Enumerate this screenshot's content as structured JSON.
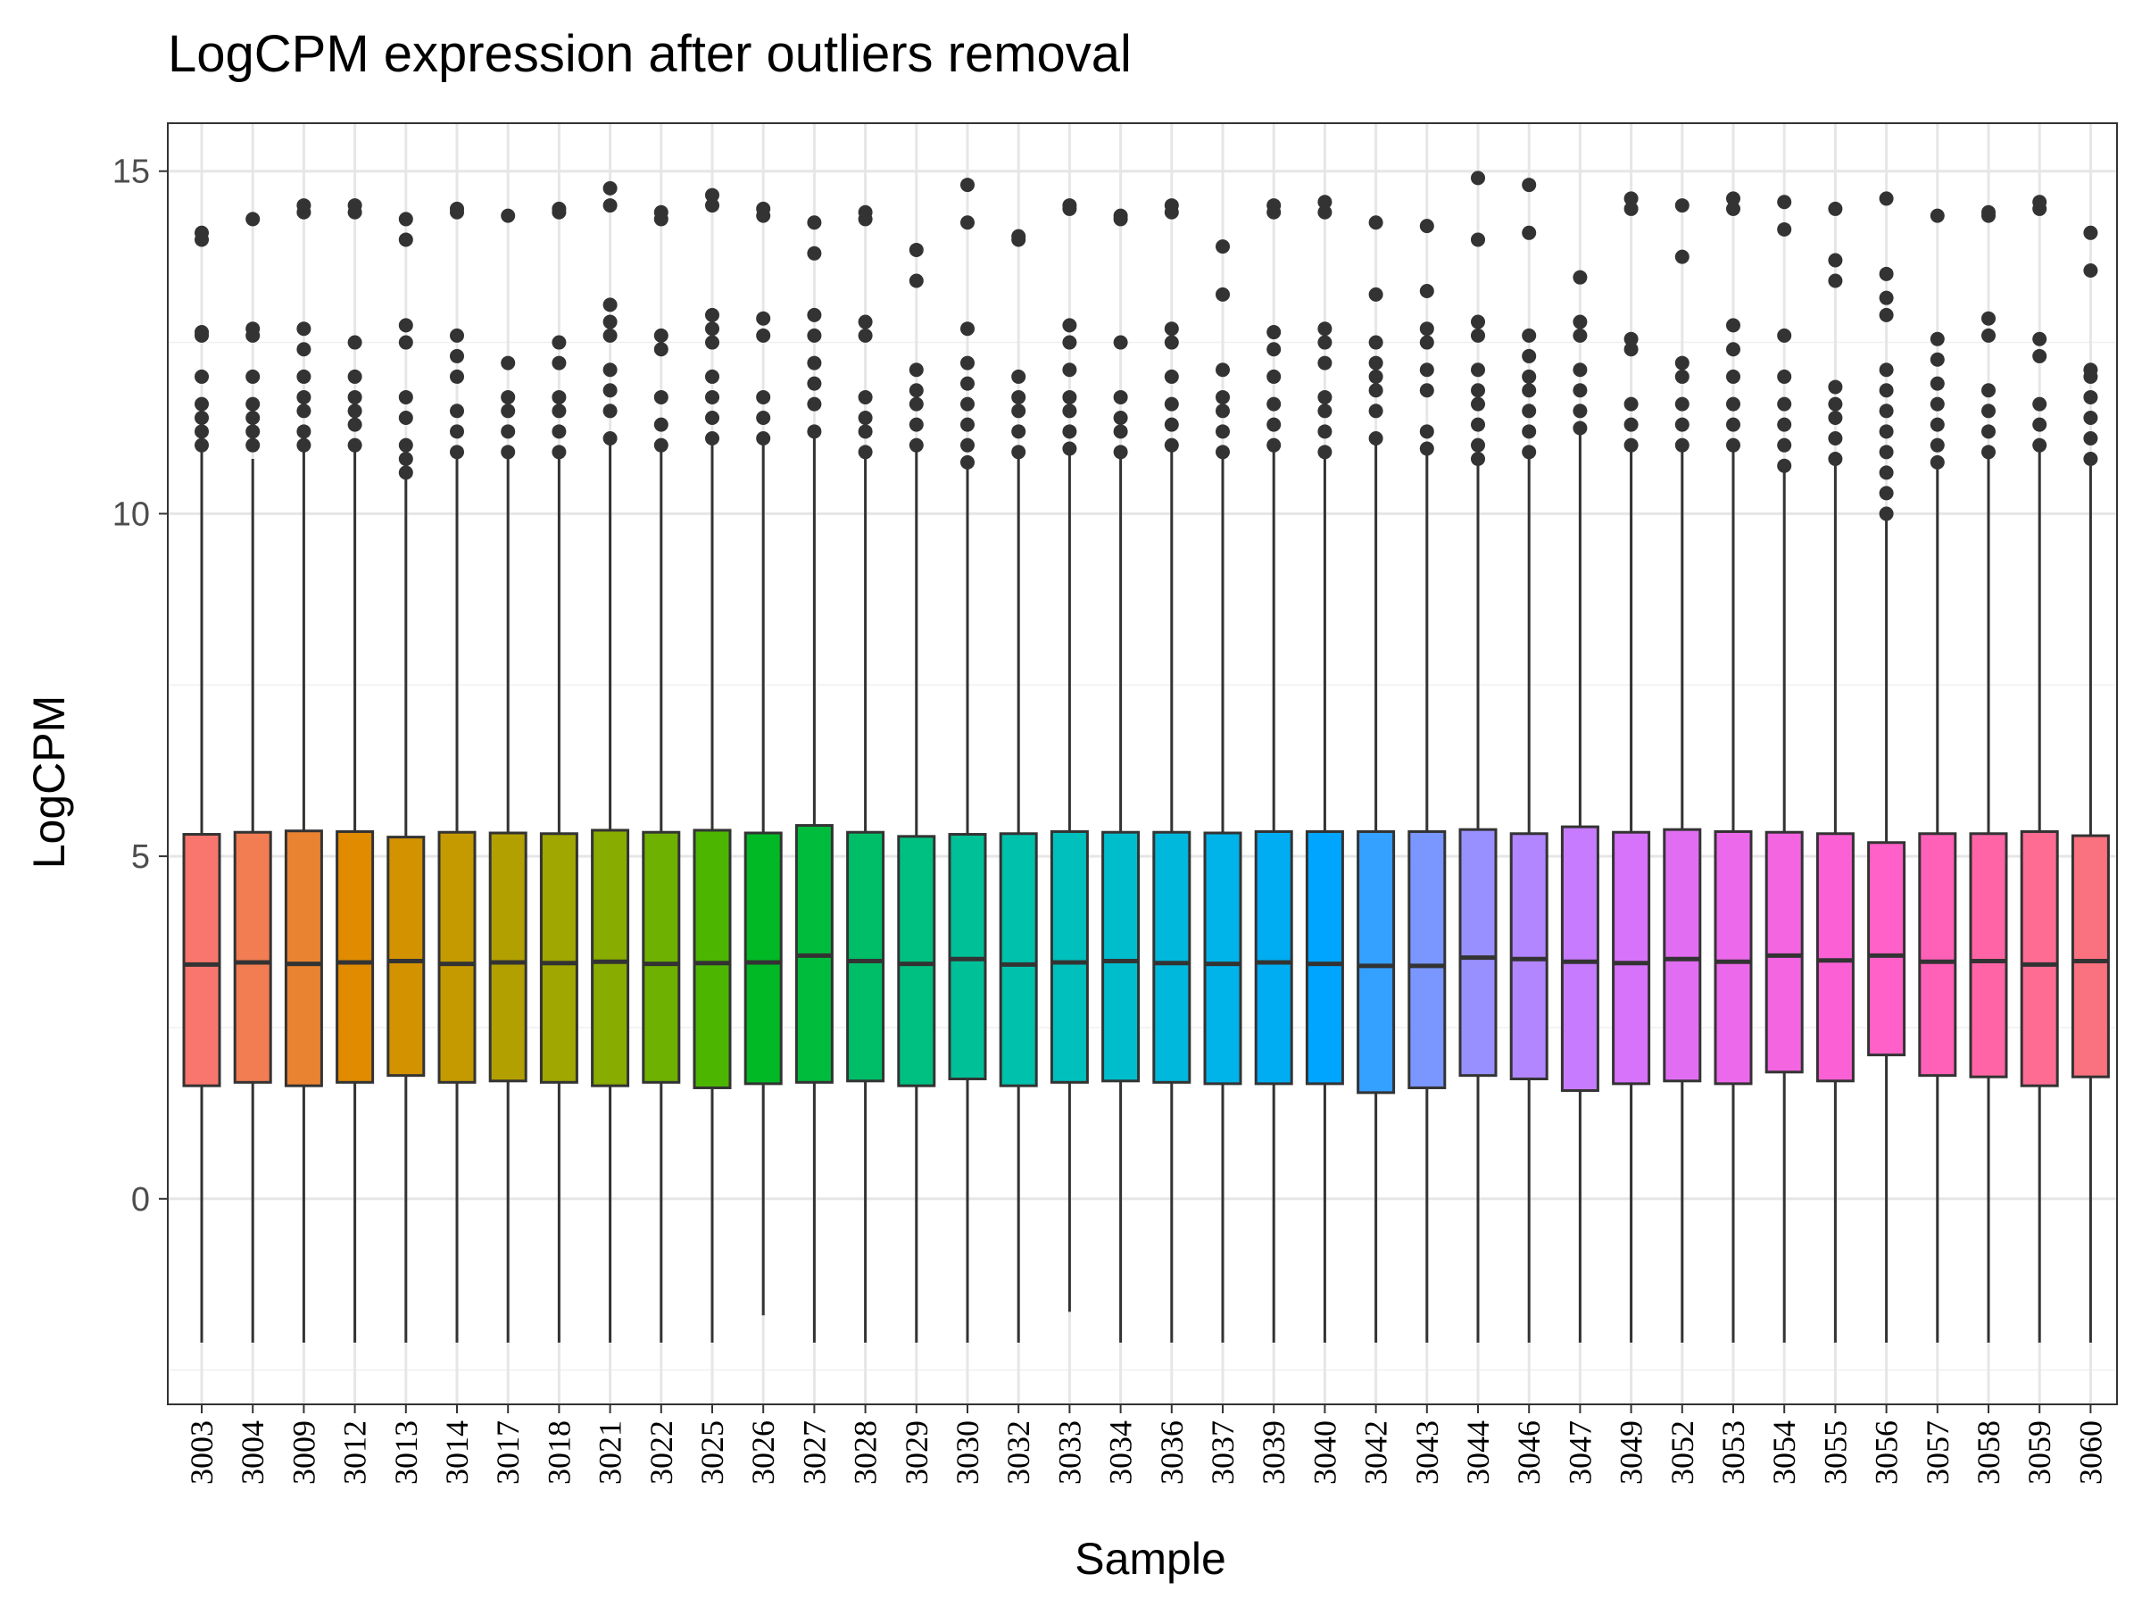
{
  "chart_data": {
    "type": "boxplot",
    "title": "LogCPM expression after outliers removal",
    "xlabel": "Sample",
    "ylabel": "LogCPM",
    "ylim": [
      -3,
      15.7
    ],
    "yticks": [
      0,
      5,
      10,
      15
    ],
    "grid": true,
    "legend": "none",
    "categories": [
      "3003",
      "3004",
      "3009",
      "3012",
      "3013",
      "3014",
      "3017",
      "3018",
      "3021",
      "3022",
      "3025",
      "3026",
      "3027",
      "3028",
      "3029",
      "3030",
      "3032",
      "3033",
      "3034",
      "3036",
      "3037",
      "3039",
      "3040",
      "3042",
      "3043",
      "3044",
      "3046",
      "3047",
      "3049",
      "3052",
      "3053",
      "3054",
      "3055",
      "3056",
      "3057",
      "3058",
      "3059",
      "3060"
    ],
    "colors": [
      "#F8766D",
      "#F27D52",
      "#EA8331",
      "#E08B00",
      "#D39200",
      "#C49A00",
      "#B2A000",
      "#9FA700",
      "#88AC00",
      "#6EB100",
      "#4CB500",
      "#00B924",
      "#00BC3C",
      "#00BE67",
      "#00C081",
      "#00C098",
      "#00C1AB",
      "#00C0BD",
      "#00BDCD",
      "#00B8DC",
      "#00B3E8",
      "#00ADF2",
      "#00A5FF",
      "#34A0FF",
      "#7997FF",
      "#9990FF",
      "#B186FF",
      "#C77CFF",
      "#D673FA",
      "#E16EF2",
      "#EC69EB",
      "#F465E1",
      "#FB61D5",
      "#FF61C9",
      "#FF61B8",
      "#FF65A6",
      "#FE6B93",
      "#FA717F"
    ],
    "series": [
      {
        "name": "q1",
        "values": [
          1.65,
          1.7,
          1.65,
          1.7,
          1.8,
          1.7,
          1.72,
          1.7,
          1.65,
          1.7,
          1.62,
          1.68,
          1.7,
          1.72,
          1.65,
          1.75,
          1.65,
          1.7,
          1.72,
          1.7,
          1.68,
          1.68,
          1.68,
          1.55,
          1.62,
          1.8,
          1.75,
          1.58,
          1.68,
          1.72,
          1.68,
          1.85,
          1.72,
          2.1,
          1.8,
          1.78,
          1.65,
          1.78
        ]
      },
      {
        "name": "median",
        "values": [
          3.42,
          3.45,
          3.43,
          3.45,
          3.47,
          3.43,
          3.45,
          3.44,
          3.46,
          3.43,
          3.44,
          3.45,
          3.55,
          3.47,
          3.43,
          3.5,
          3.42,
          3.45,
          3.47,
          3.44,
          3.43,
          3.45,
          3.43,
          3.4,
          3.4,
          3.52,
          3.5,
          3.46,
          3.44,
          3.5,
          3.46,
          3.55,
          3.48,
          3.55,
          3.46,
          3.47,
          3.42,
          3.47
        ]
      },
      {
        "name": "q3",
        "values": [
          5.32,
          5.35,
          5.37,
          5.36,
          5.28,
          5.35,
          5.34,
          5.33,
          5.38,
          5.35,
          5.38,
          5.34,
          5.45,
          5.35,
          5.29,
          5.32,
          5.33,
          5.36,
          5.35,
          5.35,
          5.34,
          5.36,
          5.36,
          5.36,
          5.36,
          5.39,
          5.33,
          5.43,
          5.35,
          5.39,
          5.36,
          5.35,
          5.33,
          5.2,
          5.33,
          5.33,
          5.36,
          5.3
        ]
      },
      {
        "name": "whisker_low",
        "values": [
          -2.1,
          -2.1,
          -2.1,
          -2.1,
          -2.1,
          -2.1,
          -2.1,
          -2.1,
          -2.1,
          -2.1,
          -2.1,
          -1.7,
          -2.1,
          -2.1,
          -2.1,
          -2.1,
          -2.1,
          -1.65,
          -2.1,
          -2.1,
          -2.1,
          -2.1,
          -2.1,
          -2.1,
          -2.1,
          -2.1,
          -2.1,
          -2.1,
          -2.1,
          -2.1,
          -2.1,
          -2.1,
          -2.1,
          -2.1,
          -2.1,
          -2.1,
          -2.1,
          -2.1
        ]
      },
      {
        "name": "whisker_high",
        "values": [
          10.9,
          10.8,
          10.95,
          10.95,
          10.5,
          10.8,
          10.8,
          10.8,
          11.0,
          10.9,
          11.0,
          11.0,
          11.1,
          10.8,
          10.9,
          10.7,
          10.85,
          10.9,
          10.85,
          10.95,
          10.85,
          10.95,
          10.9,
          11.1,
          10.95,
          10.75,
          10.8,
          11.2,
          10.9,
          10.95,
          10.95,
          10.65,
          10.75,
          9.9,
          10.7,
          10.8,
          10.9,
          10.7
        ]
      }
    ],
    "outliers": [
      [
        11.0,
        11.2,
        11.4,
        11.6,
        12.0,
        12.6,
        12.65,
        14.0,
        14.1
      ],
      [
        11.0,
        11.2,
        11.4,
        11.6,
        12.0,
        12.6,
        12.7,
        14.3
      ],
      [
        11.0,
        11.2,
        11.5,
        11.7,
        12.0,
        12.4,
        12.7,
        14.4,
        14.5
      ],
      [
        11.0,
        11.3,
        11.5,
        11.7,
        12.0,
        12.5,
        14.4,
        14.5
      ],
      [
        10.6,
        10.8,
        11.0,
        11.4,
        11.7,
        12.5,
        12.75,
        14.0,
        14.3
      ],
      [
        10.9,
        11.2,
        11.5,
        12.0,
        12.3,
        12.6,
        14.4,
        14.45
      ],
      [
        10.9,
        11.2,
        11.5,
        11.7,
        12.2,
        14.35
      ],
      [
        10.9,
        11.2,
        11.5,
        11.7,
        12.2,
        12.5,
        14.4,
        14.45
      ],
      [
        11.1,
        11.5,
        11.8,
        12.1,
        12.6,
        12.8,
        13.05,
        14.5,
        14.75
      ],
      [
        11.0,
        11.3,
        11.7,
        12.4,
        12.6,
        14.3,
        14.4
      ],
      [
        11.1,
        11.4,
        11.7,
        12.0,
        12.5,
        12.7,
        12.9,
        14.5,
        14.65
      ],
      [
        11.1,
        11.4,
        11.7,
        12.6,
        12.85,
        14.35,
        14.45
      ],
      [
        11.2,
        11.6,
        11.9,
        12.2,
        12.6,
        12.9,
        13.8,
        14.25
      ],
      [
        10.9,
        11.2,
        11.4,
        11.7,
        12.6,
        12.8,
        14.3,
        14.4
      ],
      [
        11.0,
        11.3,
        11.6,
        11.8,
        12.1,
        13.4,
        13.85
      ],
      [
        10.75,
        11.0,
        11.3,
        11.6,
        11.9,
        12.2,
        12.7,
        14.25,
        14.8
      ],
      [
        10.9,
        11.2,
        11.5,
        11.7,
        12.0,
        14.0,
        14.05
      ],
      [
        10.95,
        11.2,
        11.5,
        11.7,
        12.1,
        12.5,
        12.75,
        14.45,
        14.5
      ],
      [
        10.9,
        11.2,
        11.4,
        11.7,
        12.5,
        14.3,
        14.35
      ],
      [
        11.0,
        11.3,
        11.6,
        12.0,
        12.5,
        12.7,
        14.4,
        14.5
      ],
      [
        10.9,
        11.2,
        11.5,
        11.7,
        12.1,
        13.2,
        13.9
      ],
      [
        11.0,
        11.3,
        11.6,
        12.0,
        12.4,
        12.65,
        14.4,
        14.5
      ],
      [
        10.9,
        11.2,
        11.5,
        11.7,
        12.2,
        12.5,
        12.7,
        14.4,
        14.55
      ],
      [
        11.1,
        11.5,
        11.8,
        12.0,
        12.2,
        12.5,
        13.2,
        14.25
      ],
      [
        10.95,
        11.2,
        11.8,
        12.1,
        12.5,
        12.7,
        13.25,
        14.2
      ],
      [
        10.8,
        11.0,
        11.3,
        11.6,
        11.8,
        12.1,
        12.6,
        12.8,
        14.0,
        14.9
      ],
      [
        10.9,
        11.2,
        11.5,
        11.8,
        12.0,
        12.3,
        12.6,
        14.1,
        14.8
      ],
      [
        11.25,
        11.5,
        11.8,
        12.1,
        12.6,
        12.8,
        13.45
      ],
      [
        11.0,
        11.3,
        11.6,
        12.4,
        12.55,
        14.45,
        14.6
      ],
      [
        11.0,
        11.3,
        11.6,
        12.0,
        12.2,
        13.75,
        14.5
      ],
      [
        11.0,
        11.3,
        11.6,
        12.0,
        12.4,
        12.75,
        14.45,
        14.6
      ],
      [
        10.7,
        11.0,
        11.3,
        11.6,
        12.0,
        12.6,
        14.15,
        14.55
      ],
      [
        10.8,
        11.1,
        11.4,
        11.6,
        11.85,
        13.4,
        13.7,
        14.45
      ],
      [
        10.0,
        10.3,
        10.6,
        10.9,
        11.2,
        11.5,
        11.8,
        12.1,
        12.9,
        13.15,
        13.5,
        14.6
      ],
      [
        10.75,
        11.0,
        11.3,
        11.6,
        11.9,
        12.25,
        12.55,
        14.35
      ],
      [
        10.9,
        11.2,
        11.5,
        11.8,
        12.6,
        12.85,
        14.35,
        14.4
      ],
      [
        11.0,
        11.3,
        11.6,
        12.3,
        12.55,
        14.45,
        14.55
      ],
      [
        10.8,
        11.1,
        11.4,
        11.7,
        12.0,
        12.1,
        13.55,
        14.1
      ]
    ]
  }
}
